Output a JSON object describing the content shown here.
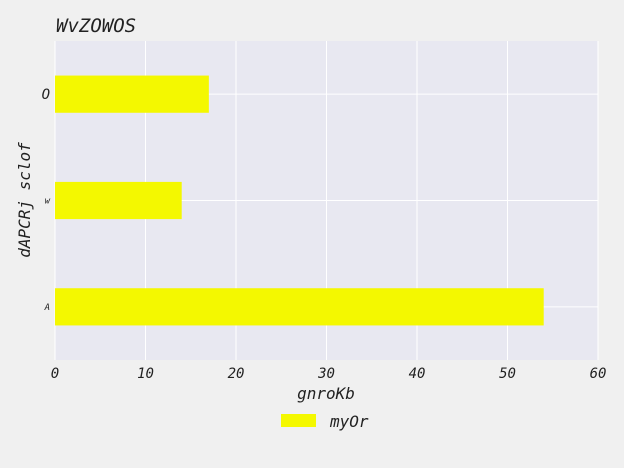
{
  "chart_data": {
    "type": "bar",
    "orientation": "horizontal",
    "title": "WvZOWOS",
    "xlabel": "gnroKb",
    "ylabel": "dAPCRj sclof",
    "categories": [
      "A",
      "w",
      "O"
    ],
    "series": [
      {
        "name": "myOr",
        "values": [
          54,
          14,
          17
        ],
        "color": "#f4f800"
      }
    ],
    "xlim": [
      0,
      60
    ],
    "xticks": [
      0,
      10,
      20,
      30,
      40,
      50,
      60
    ],
    "grid": true,
    "legend_position": "bottom-center",
    "plot_background": "#e8e8f1",
    "grid_color": "#ffffff"
  }
}
